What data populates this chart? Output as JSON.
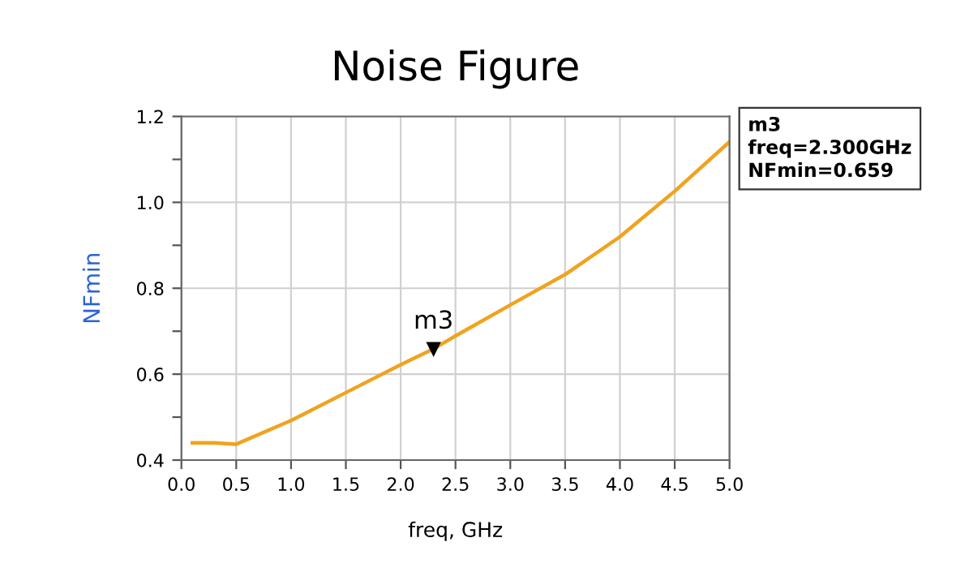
{
  "chart_data": {
    "type": "line",
    "title": "Noise Figure",
    "xlabel": "freq, GHz",
    "ylabel": "NFmin",
    "x": [
      0.1,
      0.3,
      0.5,
      1.0,
      1.5,
      2.0,
      2.3,
      2.5,
      3.0,
      3.5,
      4.0,
      4.5,
      5.0
    ],
    "series": [
      {
        "color": "#f0a31e",
        "values": [
          0.44,
          0.44,
          0.437,
          0.492,
          0.557,
          0.622,
          0.659,
          0.689,
          0.761,
          0.832,
          0.92,
          1.026,
          1.141
        ]
      },
      {
        "type": "scatter",
        "x": [
          2.3
        ],
        "color": "#000000",
        "marker": "triangle",
        "values": [
          0.659
        ]
      }
    ],
    "xlim": [
      0,
      5
    ],
    "xticks": [
      {
        "value": 0,
        "label": "0.0"
      },
      0.5,
      {
        "value": 1,
        "label": "1.0"
      },
      1.5,
      {
        "value": 2,
        "label": "2.0"
      },
      2.5,
      {
        "value": 3,
        "label": "3.0"
      },
      3.5,
      {
        "value": 4,
        "label": "4.0"
      },
      4.5,
      {
        "value": 5,
        "label": "5.0"
      }
    ],
    "ylim": [
      0.4,
      1.2
    ],
    "yticks": [
      0.4,
      {
        "value": 0.5,
        "label": null
      },
      0.6,
      {
        "value": 0.7,
        "label": null
      },
      0.8,
      {
        "value": 0.9,
        "label": null
      },
      {
        "value": 1,
        "label": "1.0"
      },
      {
        "value": 1.1,
        "label": null
      },
      1.2
    ],
    "grid": true,
    "legend": false,
    "marker": "none",
    "line_style": "solid",
    "annotations": [
      {
        "text": "m3",
        "x": 2.3,
        "y": 0.659
      },
      "m3\nfreq=2.300GHz\nNFmin=0.659"
    ]
  }
}
